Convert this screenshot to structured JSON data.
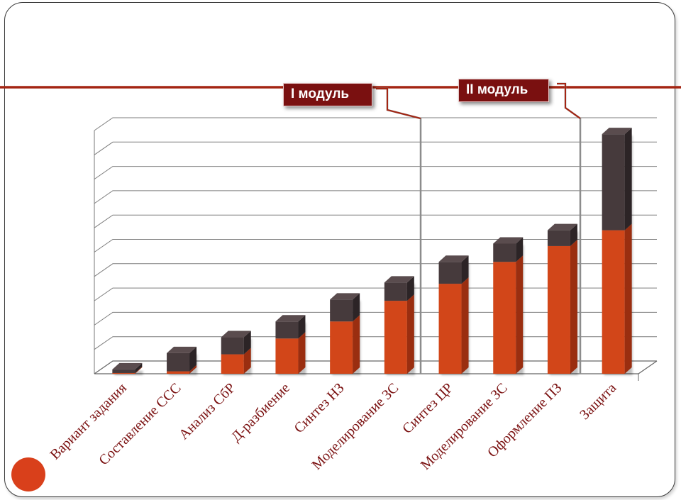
{
  "colors": {
    "bar_front": "#d24619",
    "bar_side": "#9a2e10",
    "cap_front": "#463a3c",
    "cap_side": "#2c2426",
    "accent_line": "#a42513",
    "module_box": "#7a1010",
    "corner_circle": "#d9401b"
  },
  "modules": [
    {
      "label": "I модуль"
    },
    {
      "label": "II модуль"
    }
  ],
  "chart_data": {
    "type": "bar",
    "stacked": true,
    "three_d": true,
    "grid": true,
    "ylim": [
      0,
      100
    ],
    "categories": [
      "Вариант задания",
      "Составление ССС",
      "Анализ СбР",
      "Д-разбиение",
      "Синтез НЗ",
      "Моделирование ЗС",
      "Синтез ЦР",
      "Моделирование ЗС",
      "Оформление ПЗ",
      "Защита"
    ],
    "series": [
      {
        "values": [
          0.3,
          1,
          8,
          14.5,
          21.5,
          30,
          37,
          46,
          52.5,
          59
        ]
      },
      {
        "values": [
          1.5,
          7.5,
          7,
          7,
          9,
          7.5,
          9,
          7.5,
          6.5,
          39.5
        ]
      }
    ]
  }
}
